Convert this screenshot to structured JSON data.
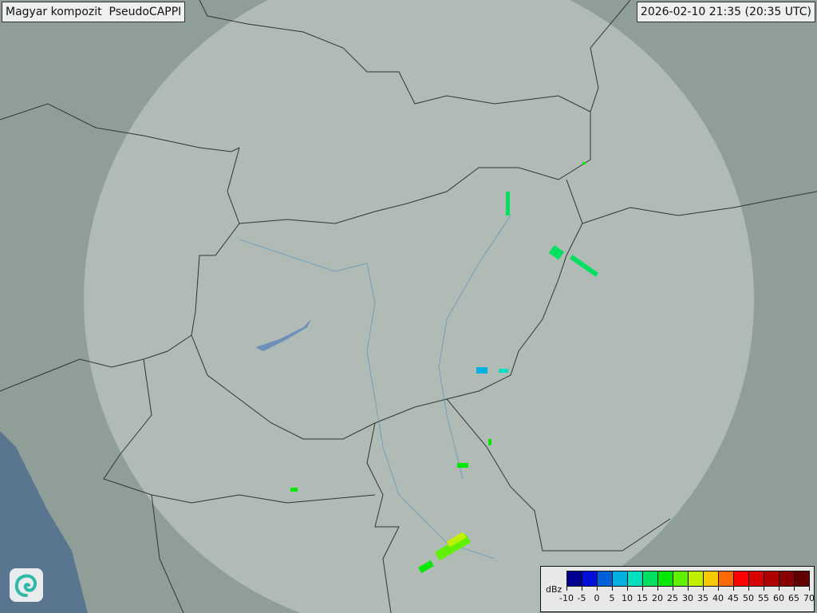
{
  "header": {
    "title": "Magyar kompozit  PseudoCAPPI",
    "timestamp": "2026-02-10 21:35 (20:35 UTC)"
  },
  "legend": {
    "unit": "dBz",
    "labels": [
      "-10",
      "-5",
      "0",
      "5",
      "10",
      "15",
      "20",
      "25",
      "30",
      "35",
      "40",
      "45",
      "50",
      "55",
      "60",
      "65",
      "70"
    ],
    "colors": [
      "#000090",
      "#0010d8",
      "#0060d8",
      "#00b0e0",
      "#00e0c0",
      "#00e060",
      "#00e800",
      "#60f000",
      "#c0f000",
      "#f8c800",
      "#ff6800",
      "#ff0000",
      "#d80000",
      "#b00000",
      "#880000",
      "#600000"
    ]
  },
  "map": {
    "land_color": "#8f9e98",
    "coverage_color": "#c8d4ce",
    "sea_color": "#5a7590",
    "border_color": "#333333"
  },
  "logo": {
    "icon": "swirl-logo-icon"
  }
}
